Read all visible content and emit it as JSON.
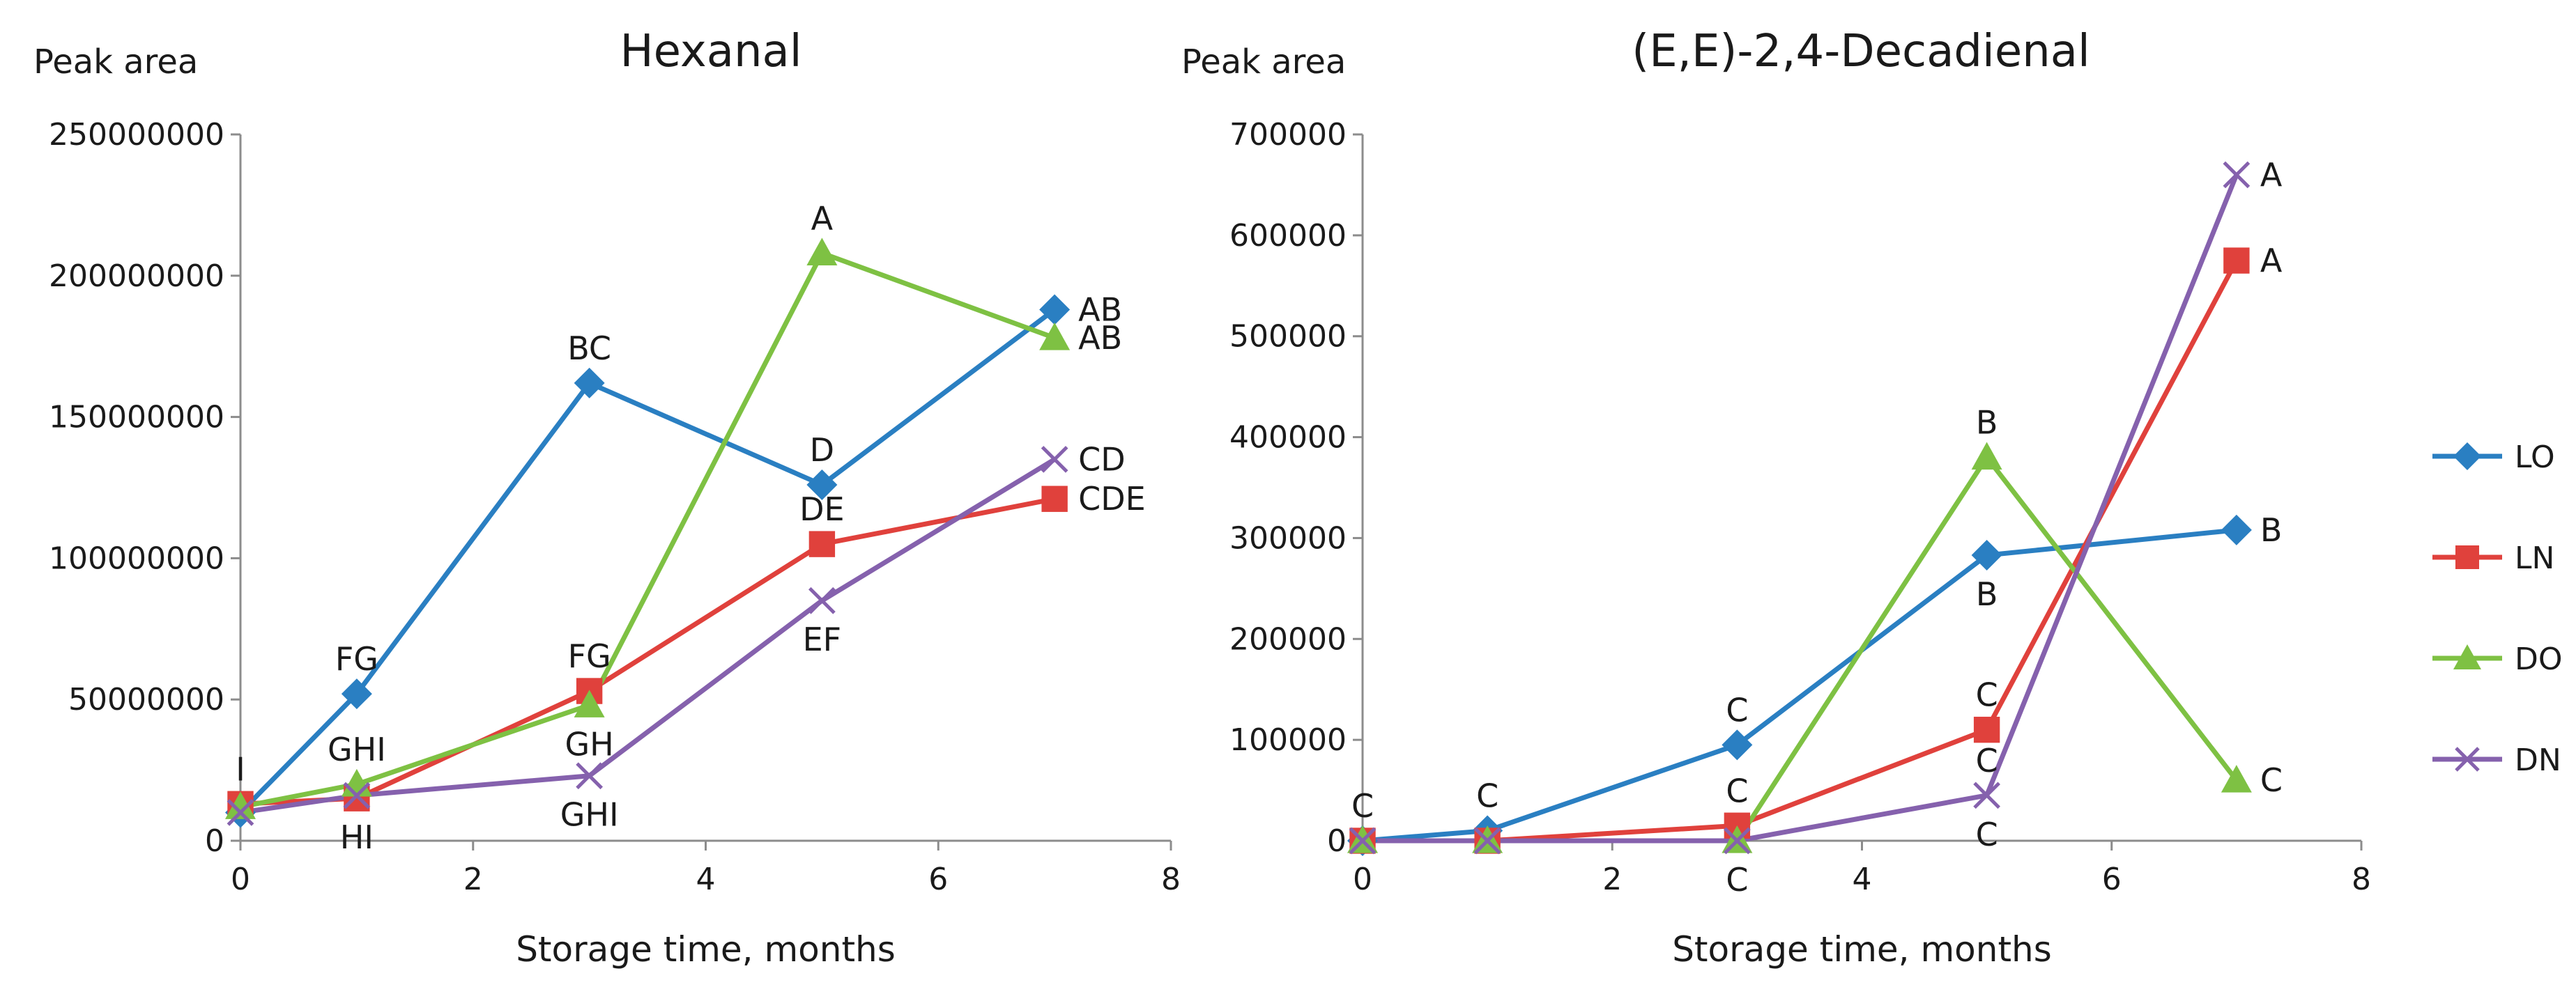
{
  "chart_data": [
    {
      "type": "line",
      "title": "Hexanal",
      "ylabel": "Peak area",
      "xlabel": "Storage time, months",
      "xlim": [
        0,
        8
      ],
      "ylim": [
        0,
        250000000
      ],
      "xticks": [
        "0",
        "2",
        "4",
        "6",
        "8"
      ],
      "yticks": [
        "0",
        "50000000",
        "100000000",
        "150000000",
        "200000000",
        "250000000"
      ],
      "x": [
        0,
        1,
        3,
        5,
        7
      ],
      "series": [
        {
          "name": "LO",
          "color": "#2a7fc2",
          "marker": "diamond",
          "values": [
            10000000,
            52000000,
            162000000,
            126000000,
            188000000
          ],
          "labels": [
            "",
            "FG",
            "BC",
            "D",
            "AB"
          ],
          "label_pos": [
            "above",
            "above",
            "above",
            "above",
            "right"
          ]
        },
        {
          "name": "LN",
          "color": "#e0413c",
          "marker": "square",
          "values": [
            13000000,
            15000000,
            53000000,
            105000000,
            121000000
          ],
          "labels": [
            "I",
            "HI",
            "FG",
            "DE",
            "CDE"
          ],
          "label_pos": [
            "above",
            "below",
            "above",
            "above",
            "right"
          ]
        },
        {
          "name": "DO",
          "color": "#7ec143",
          "marker": "triangle",
          "values": [
            12000000,
            20000000,
            48000000,
            208000000,
            178000000
          ],
          "labels": [
            "",
            "GHI",
            "GH",
            "A",
            "AB"
          ],
          "label_pos": [
            "above",
            "above",
            "below",
            "above",
            "right"
          ]
        },
        {
          "name": "DN",
          "color": "#8561ad",
          "marker": "x",
          "values": [
            10000000,
            16000000,
            23000000,
            85000000,
            135000000
          ],
          "labels": [
            "",
            "",
            "GHI",
            "EF",
            "CD"
          ],
          "label_pos": [
            "above",
            "above",
            "below",
            "below",
            "right"
          ]
        }
      ]
    },
    {
      "type": "line",
      "title": "(E,E)-2,4-Decadienal",
      "ylabel": "Peak area",
      "xlabel": "Storage time, months",
      "xlim": [
        0,
        8
      ],
      "ylim": [
        0,
        700000
      ],
      "xticks": [
        "0",
        "2",
        "4",
        "6",
        "8"
      ],
      "yticks": [
        "0",
        "100000",
        "200000",
        "300000",
        "400000",
        "500000",
        "600000",
        "700000"
      ],
      "x": [
        0,
        1,
        3,
        5,
        7
      ],
      "series": [
        {
          "name": "LO",
          "color": "#2a7fc2",
          "marker": "diamond",
          "values": [
            0,
            10000,
            95000,
            283000,
            308000
          ],
          "labels": [
            "C",
            "C",
            "C",
            "B",
            "B"
          ],
          "label_pos": [
            "above",
            "above",
            "above",
            "below",
            "right"
          ]
        },
        {
          "name": "LN",
          "color": "#e0413c",
          "marker": "square",
          "values": [
            0,
            0,
            15000,
            110000,
            575000
          ],
          "labels": [
            "",
            "",
            "C",
            "C",
            "A"
          ],
          "label_pos": [
            "above",
            "above",
            "above",
            "above",
            "right"
          ]
        },
        {
          "name": "DO",
          "color": "#7ec143",
          "marker": "triangle",
          "values": [
            0,
            0,
            0,
            380000,
            60000
          ],
          "labels": [
            "",
            "",
            "C",
            "B",
            "C"
          ],
          "label_pos": [
            "above",
            "above",
            "below",
            "above",
            "right"
          ]
        },
        {
          "name": "DN",
          "color": "#8561ad",
          "marker": "x",
          "values": [
            0,
            0,
            0,
            45000,
            660000
          ],
          "labels": [
            "",
            "",
            "",
            "C",
            "A"
          ],
          "label_pos": [
            "above",
            "above",
            "above",
            "both",
            "right"
          ]
        }
      ]
    }
  ],
  "legend": {
    "position": "right",
    "items": [
      {
        "name": "LO",
        "color": "#2a7fc2",
        "marker": "diamond"
      },
      {
        "name": "LN",
        "color": "#e0413c",
        "marker": "square"
      },
      {
        "name": "DO",
        "color": "#7ec143",
        "marker": "triangle"
      },
      {
        "name": "DN",
        "color": "#8561ad",
        "marker": "x"
      }
    ]
  }
}
